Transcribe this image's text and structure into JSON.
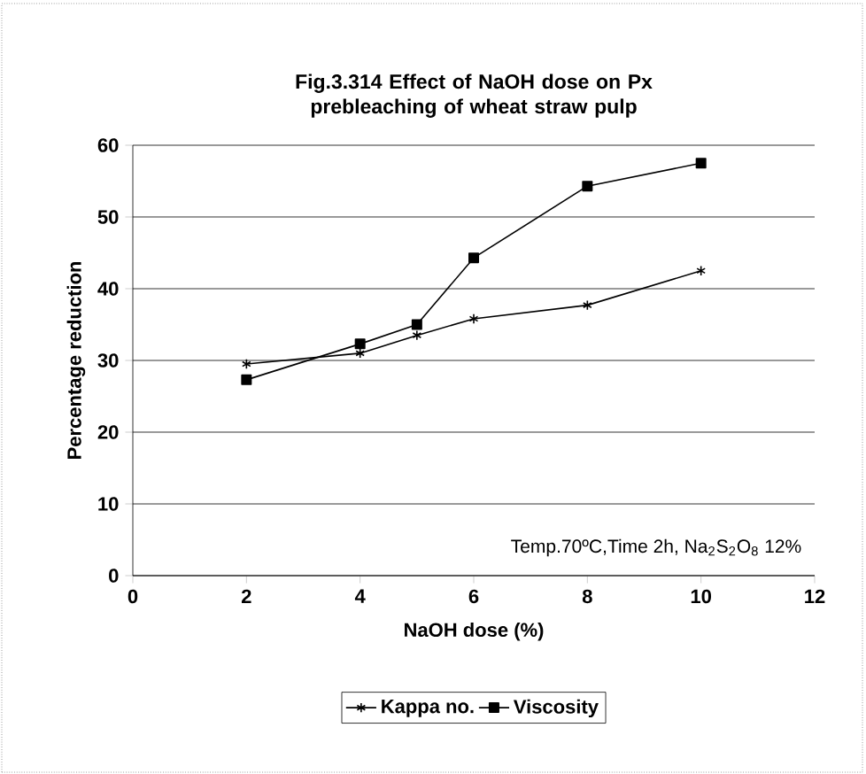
{
  "chart_data": {
    "type": "line",
    "title": "Fig.3.314 Effect of NaOH dose on Px prebleaching of wheat straw pulp",
    "xlabel": "NaOH dose (%)",
    "ylabel": "Percentage reduction",
    "x": [
      2,
      4,
      5,
      6,
      8,
      10
    ],
    "series": [
      {
        "name": "Kappa no.",
        "color": "#000000",
        "marker": "cross",
        "values": [
          29.5,
          31,
          33.5,
          35.8,
          37.7,
          42.5
        ]
      },
      {
        "name": "Viscosity",
        "color": "#000000",
        "marker": "square",
        "values": [
          27.3,
          32.3,
          35,
          44.3,
          54.3,
          57.5
        ]
      }
    ],
    "xlim": [
      0,
      12
    ],
    "xticks": [
      0,
      2,
      4,
      6,
      8,
      10,
      12
    ],
    "ylim": [
      0,
      60
    ],
    "yticks": [
      0,
      10,
      20,
      30,
      40,
      50,
      60
    ],
    "grid": "y",
    "legend": "bottom",
    "line_style": "solid",
    "annotations": [
      "Temp.70ºC,Time 2h, Na$_{2}$S$_{2}$O$_{8}$ 12%"
    ]
  }
}
